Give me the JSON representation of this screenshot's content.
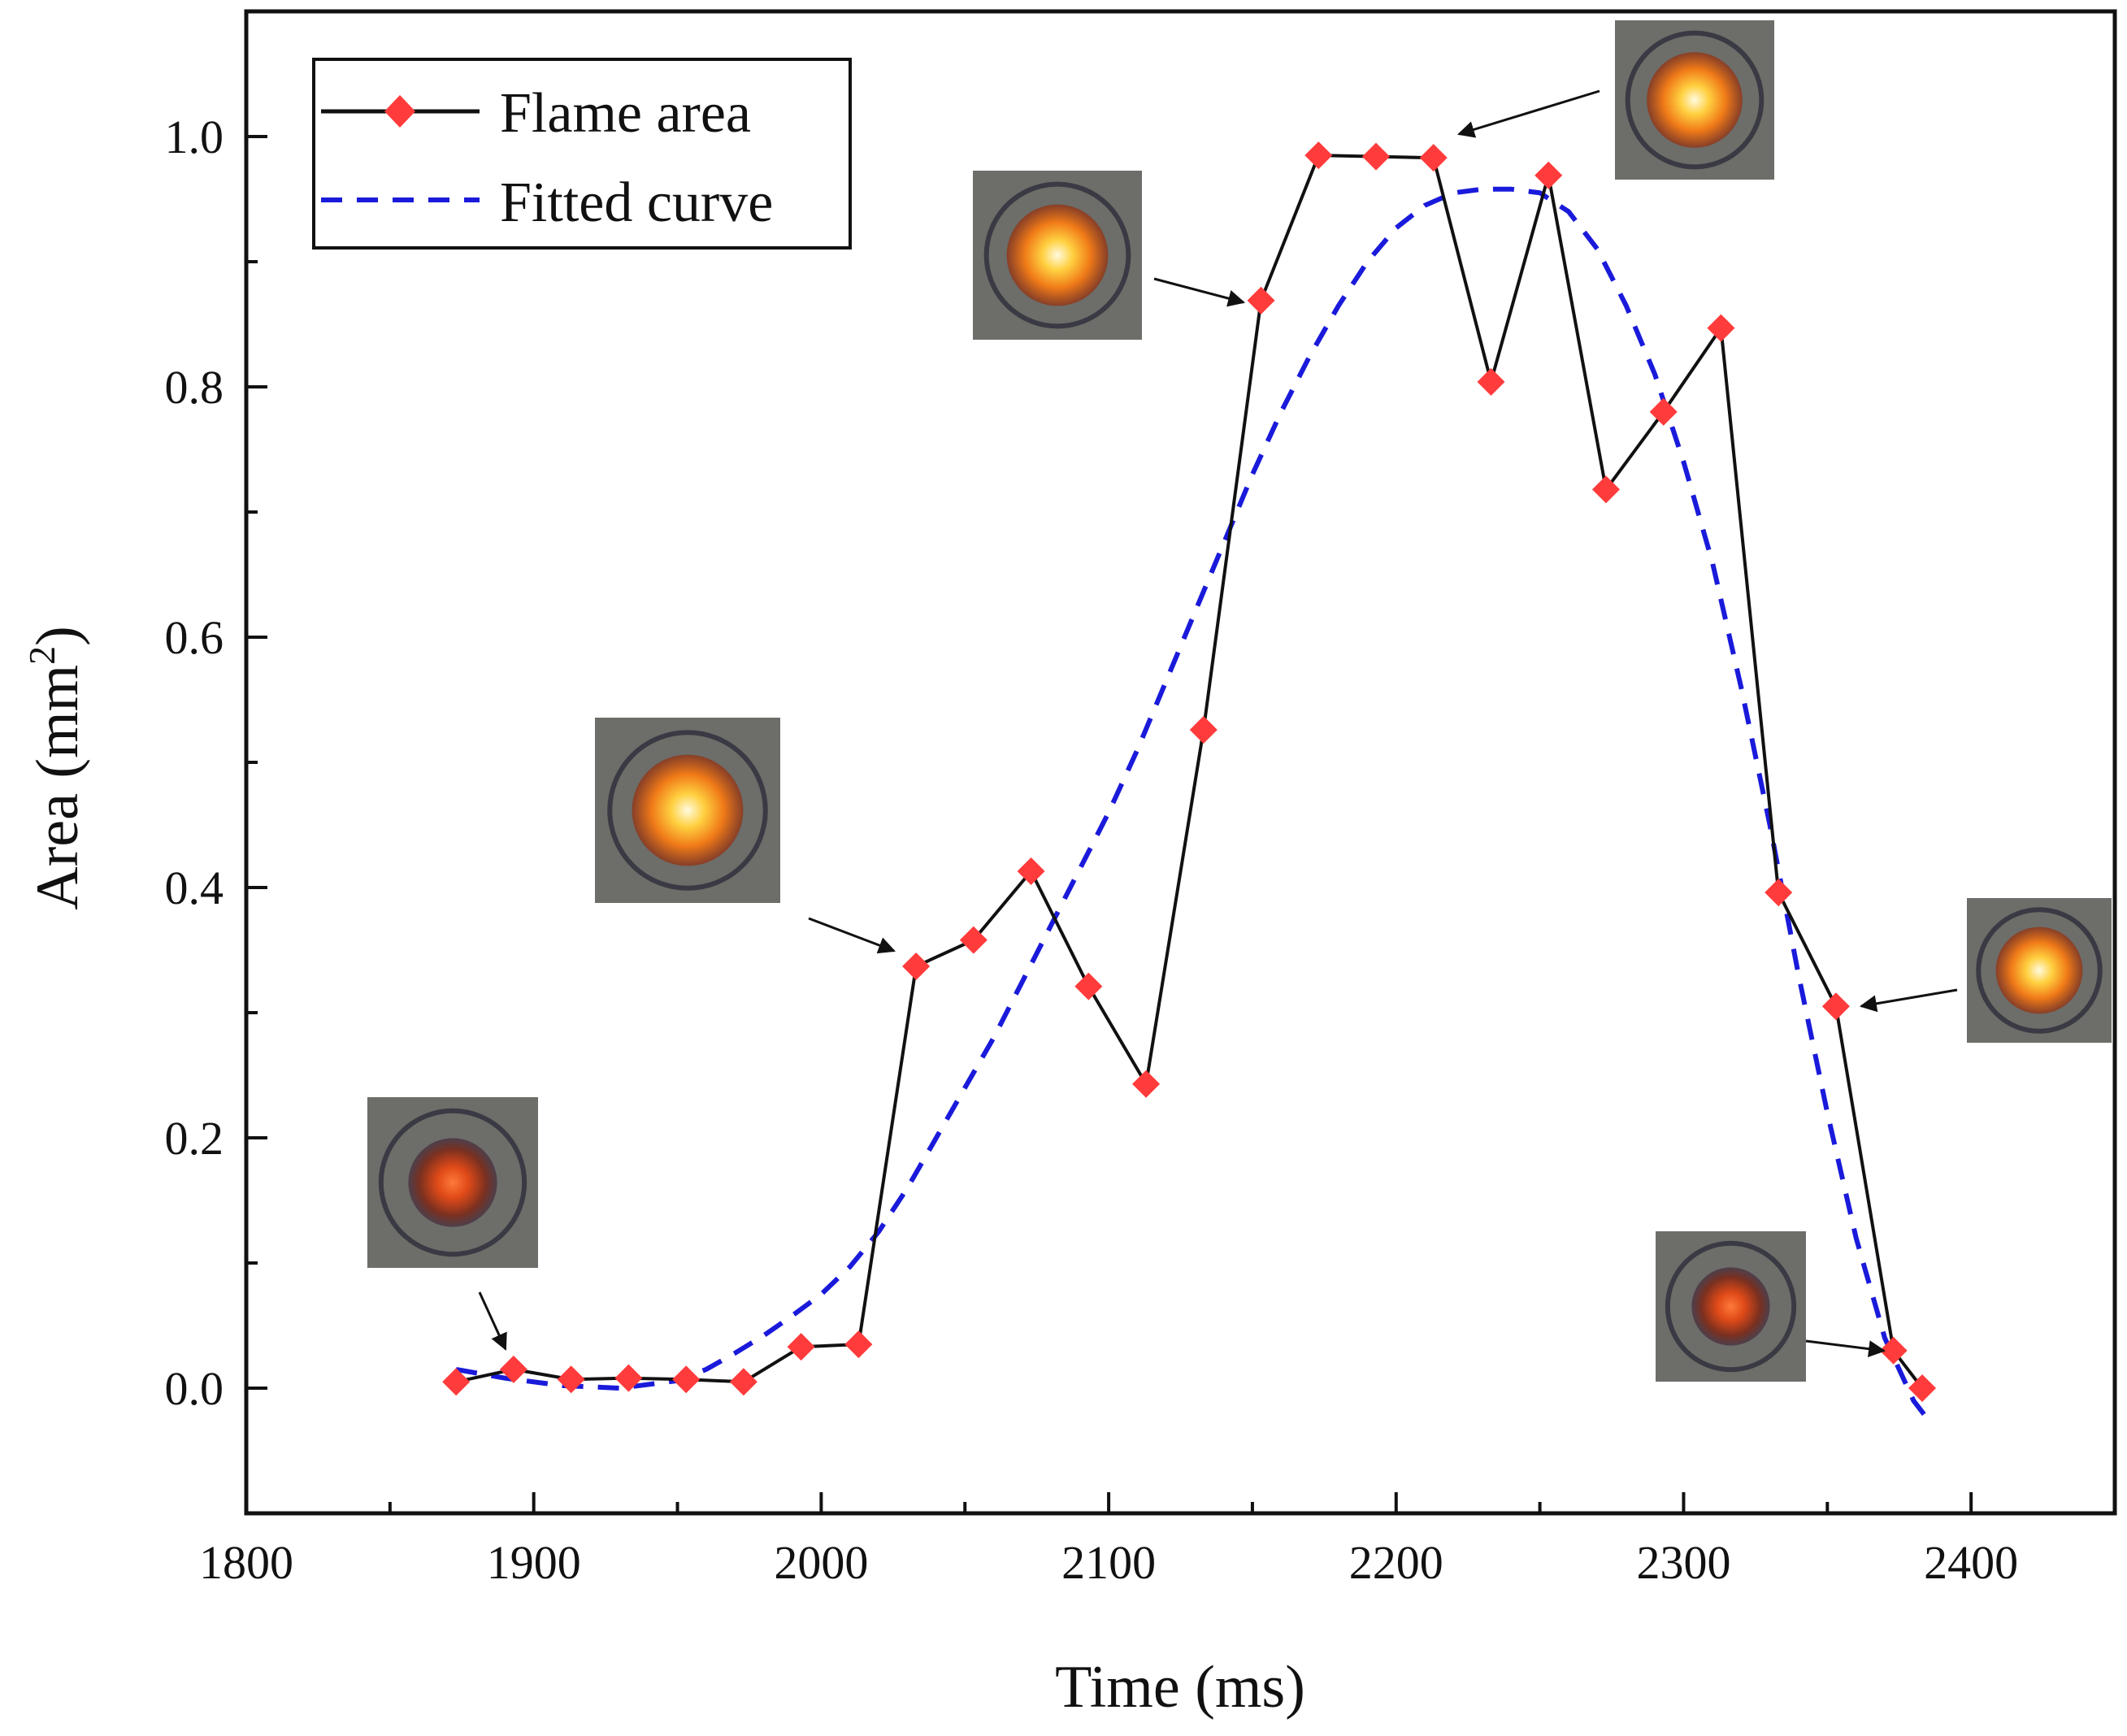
{
  "chart_data": {
    "type": "line",
    "title": "",
    "xlabel": "Time (ms)",
    "ylabel_main": "Area (mm",
    "ylabel_sup": "2",
    "ylabel_close": ")",
    "xlim": [
      1800,
      2450
    ],
    "ylim": [
      -0.1,
      1.1
    ],
    "x_ticks": [
      1800,
      1900,
      2000,
      2100,
      2200,
      2300,
      2400
    ],
    "x_tick_labels": [
      "1800",
      "1900",
      "2000",
      "2100",
      "2200",
      "2300",
      "2400"
    ],
    "x_minor_ticks": [
      1850,
      1950,
      2050,
      2150,
      2250,
      2350
    ],
    "y_ticks": [
      0.0,
      0.2,
      0.4,
      0.6,
      0.8,
      1.0
    ],
    "y_tick_labels": [
      "0.0",
      "0.2",
      "0.4",
      "0.6",
      "0.8",
      "1.0"
    ],
    "y_minor_ticks": [
      0.1,
      0.3,
      0.5,
      0.7,
      0.9
    ],
    "legend_position": "top-left",
    "series": [
      {
        "name": "Flame area",
        "style": "solid-line-diamond-markers",
        "line_color": "#111111",
        "marker_color": "#ff3b3b",
        "x": [
          1873,
          1893,
          1913,
          1933,
          1953,
          1973,
          1993,
          2013,
          2033,
          2053,
          2073,
          2093,
          2113,
          2133,
          2153,
          2173,
          2193,
          2213,
          2233,
          2253,
          2273,
          2293,
          2313,
          2333,
          2353,
          2373,
          2383
        ],
        "y": [
          0.005,
          0.015,
          0.007,
          0.008,
          0.007,
          0.005,
          0.033,
          0.035,
          0.337,
          0.358,
          0.413,
          0.321,
          0.243,
          0.526,
          0.869,
          0.985,
          0.984,
          0.983,
          0.804,
          0.969,
          0.718,
          0.78,
          0.847,
          0.396,
          0.305,
          0.03,
          0.0
        ]
      },
      {
        "name": "Fitted curve",
        "style": "dashed-line",
        "line_color": "#1a1adb",
        "x": [
          1873,
          1890,
          1910,
          1930,
          1950,
          1960,
          1970,
          1980,
          1990,
          2000,
          2010,
          2020,
          2030,
          2040,
          2050,
          2060,
          2070,
          2080,
          2090,
          2100,
          2110,
          2120,
          2130,
          2140,
          2150,
          2160,
          2170,
          2180,
          2190,
          2200,
          2210,
          2220,
          2230,
          2240,
          2250,
          2260,
          2270,
          2280,
          2290,
          2300,
          2310,
          2320,
          2330,
          2340,
          2350,
          2360,
          2370,
          2380,
          2385
        ],
        "y": [
          0.015,
          0.008,
          0.002,
          0.0,
          0.006,
          0.015,
          0.028,
          0.042,
          0.058,
          0.075,
          0.097,
          0.125,
          0.16,
          0.2,
          0.24,
          0.28,
          0.325,
          0.37,
          0.415,
          0.46,
          0.51,
          0.565,
          0.62,
          0.675,
          0.73,
          0.78,
          0.825,
          0.865,
          0.9,
          0.927,
          0.945,
          0.955,
          0.958,
          0.958,
          0.955,
          0.94,
          0.91,
          0.865,
          0.81,
          0.74,
          0.66,
          0.56,
          0.45,
          0.33,
          0.22,
          0.12,
          0.04,
          -0.01,
          -0.025
        ]
      }
    ],
    "annotations": [
      {
        "name": "flame-image-1893",
        "x": 1893,
        "y": 0.015,
        "kind": "flame-photo"
      },
      {
        "name": "flame-image-2033",
        "x": 2033,
        "y": 0.337,
        "kind": "flame-photo"
      },
      {
        "name": "flame-image-2153",
        "x": 2153,
        "y": 0.869,
        "kind": "flame-photo"
      },
      {
        "name": "flame-image-2213",
        "x": 2213,
        "y": 0.983,
        "kind": "flame-photo"
      },
      {
        "name": "flame-image-2353",
        "x": 2353,
        "y": 0.305,
        "kind": "flame-photo"
      },
      {
        "name": "flame-image-2373",
        "x": 2373,
        "y": 0.03,
        "kind": "flame-photo"
      }
    ]
  },
  "colors": {
    "axis": "#111111",
    "marker": "#ff3b3b",
    "fit_line": "#1a1adb",
    "photo_background": "#6d6d69",
    "photo_ring": "#3a3a44",
    "flame_core": "#fff6c8",
    "flame_mid": "#ffb020",
    "flame_outer": "#e05510"
  }
}
